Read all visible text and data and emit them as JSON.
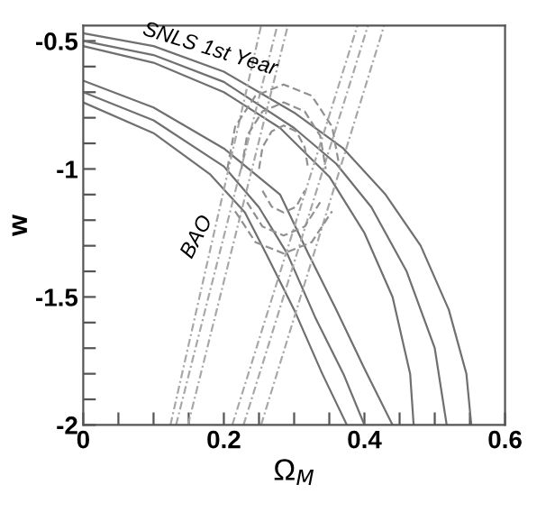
{
  "chart_data": {
    "type": "line",
    "xlabel": "Ω$_{M}$",
    "ylabel": "w",
    "xlim": [
      0,
      0.6
    ],
    "ylim": [
      -2,
      -0.44
    ],
    "xticks": [
      0,
      {
        "value": 0.05,
        "label": null
      },
      {
        "value": 0.1,
        "label": null
      },
      {
        "value": 0.15,
        "label": null
      },
      0.2,
      {
        "value": 0.25,
        "label": null
      },
      {
        "value": 0.3,
        "label": null
      },
      {
        "value": 0.35,
        "label": null
      },
      0.4,
      {
        "value": 0.45,
        "label": null
      },
      {
        "value": 0.5,
        "label": null
      },
      {
        "value": 0.55,
        "label": null
      },
      0.6
    ],
    "yticks": [
      -2,
      {
        "value": -1.9,
        "label": null
      },
      {
        "value": -1.8,
        "label": null
      },
      {
        "value": -1.7,
        "label": null
      },
      {
        "value": -1.6,
        "label": null
      },
      -1.5,
      {
        "value": -1.4,
        "label": null
      },
      {
        "value": -1.3,
        "label": null
      },
      {
        "value": -1.2,
        "label": null
      },
      {
        "value": -1.1,
        "label": null
      },
      -1,
      {
        "value": -0.9,
        "label": null
      },
      {
        "value": -0.8,
        "label": null
      },
      {
        "value": -0.7,
        "label": null
      },
      {
        "value": -0.6,
        "label": null
      },
      -0.5
    ],
    "grid": false,
    "legend": false,
    "marker": "none",
    "series": [
      {
        "color": "#707070",
        "line_style": "solid",
        "x": [
          0,
          0.1,
          0.2,
          0.3,
          0.37,
          0.43,
          0.48,
          0.52,
          0.545,
          0.552
        ],
        "values": [
          -0.47,
          -0.52,
          -0.62,
          -0.78,
          -0.92,
          -1.1,
          -1.3,
          -1.55,
          -1.8,
          -2.0
        ]
      },
      {
        "color": "#707070",
        "line_style": "solid",
        "x": [
          0,
          0.1,
          0.2,
          0.3,
          0.36,
          0.41,
          0.46,
          0.5,
          0.517
        ],
        "values": [
          -0.5,
          -0.555,
          -0.66,
          -0.84,
          -0.98,
          -1.15,
          -1.4,
          -1.7,
          -2.0
        ]
      },
      {
        "color": "#707070",
        "line_style": "solid",
        "x": [
          0,
          0.1,
          0.2,
          0.28,
          0.35,
          0.4,
          0.44,
          0.465,
          0.47
        ],
        "values": [
          -0.52,
          -0.585,
          -0.7,
          -0.84,
          -1.03,
          -1.25,
          -1.5,
          -1.8,
          -2.0
        ]
      },
      {
        "color": "#707070",
        "line_style": "solid",
        "x": [
          0,
          0.1,
          0.2,
          0.28,
          0.32,
          0.36,
          0.4,
          0.44
        ],
        "values": [
          -0.655,
          -0.76,
          -0.92,
          -1.1,
          -1.33,
          -1.55,
          -1.78,
          -2.0
        ]
      },
      {
        "color": "#707070",
        "line_style": "solid",
        "x": [
          0,
          0.1,
          0.2,
          0.25,
          0.29,
          0.33,
          0.37,
          0.4
        ],
        "values": [
          -0.7,
          -0.81,
          -0.99,
          -1.15,
          -1.33,
          -1.58,
          -1.8,
          -2.0
        ]
      },
      {
        "color": "#707070",
        "line_style": "solid",
        "x": [
          0,
          0.1,
          0.18,
          0.23,
          0.26,
          0.3,
          0.34,
          0.375
        ],
        "values": [
          -0.74,
          -0.86,
          -1.02,
          -1.17,
          -1.33,
          -1.55,
          -1.8,
          -2.0
        ]
      },
      {
        "color": "#a8a8a8",
        "line_style": "dotted",
        "x": [
          0.124,
          0.253
        ],
        "values": [
          -2.0,
          -0.44
        ]
      },
      {
        "color": "#a8a8a8",
        "line_style": "dotted",
        "x": [
          0.132,
          0.276
        ],
        "values": [
          -2.0,
          -0.44
        ]
      },
      {
        "color": "#a8a8a8",
        "line_style": "dotted",
        "x": [
          0.149,
          0.291
        ],
        "values": [
          -2.0,
          -0.44
        ]
      },
      {
        "color": "#a8a8a8",
        "line_style": "dotted",
        "x": [
          0.212,
          0.39
        ],
        "values": [
          -2.0,
          -0.44
        ]
      },
      {
        "color": "#a8a8a8",
        "line_style": "dotted",
        "x": [
          0.228,
          0.405
        ],
        "values": [
          -2.0,
          -0.44
        ]
      },
      {
        "color": "#a8a8a8",
        "line_style": "dotted",
        "x": [
          0.253,
          0.428
        ],
        "values": [
          -2.0,
          -0.44
        ]
      },
      {
        "color": "#909090",
        "line_style": "dashed",
        "x": [
          0.25,
          0.255,
          0.268,
          0.285,
          0.303,
          0.315,
          0.32
        ],
        "values": [
          -1.0,
          -0.915,
          -0.853,
          -0.83,
          -0.853,
          -0.915,
          -1.0
        ]
      },
      {
        "color": "#909090",
        "line_style": "dashed",
        "x": [
          0.255,
          0.268,
          0.285,
          0.303,
          0.315
        ],
        "values": [
          -1.085,
          -1.147,
          -1.17,
          -1.147,
          -1.085
        ]
      },
      {
        "color": "#909090",
        "line_style": "dashed",
        "x": [
          0.225,
          0.233,
          0.255,
          0.285,
          0.315,
          0.337,
          0.345
        ],
        "values": [
          -1.0,
          -0.87,
          -0.775,
          -0.74,
          -0.775,
          -0.87,
          -1.0
        ]
      },
      {
        "color": "#909090",
        "line_style": "dashed",
        "x": [
          0.233,
          0.255,
          0.285,
          0.315,
          0.337
        ],
        "values": [
          -1.13,
          -1.225,
          -1.26,
          -1.225,
          -1.13
        ]
      },
      {
        "color": "#909090",
        "line_style": "dashed",
        "x": [
          0.205,
          0.216,
          0.245,
          0.285,
          0.325,
          0.354,
          0.365
        ],
        "values": [
          -1.0,
          -0.835,
          -0.714,
          -0.67,
          -0.714,
          -0.835,
          -1.0
        ]
      },
      {
        "color": "#909090",
        "line_style": "dashed",
        "x": [
          0.216,
          0.245,
          0.285,
          0.325,
          0.354
        ],
        "values": [
          -1.165,
          -1.286,
          -1.33,
          -1.286,
          -1.165
        ]
      }
    ],
    "annotations": [
      "SNLS 1st Year",
      "BAO"
    ]
  }
}
